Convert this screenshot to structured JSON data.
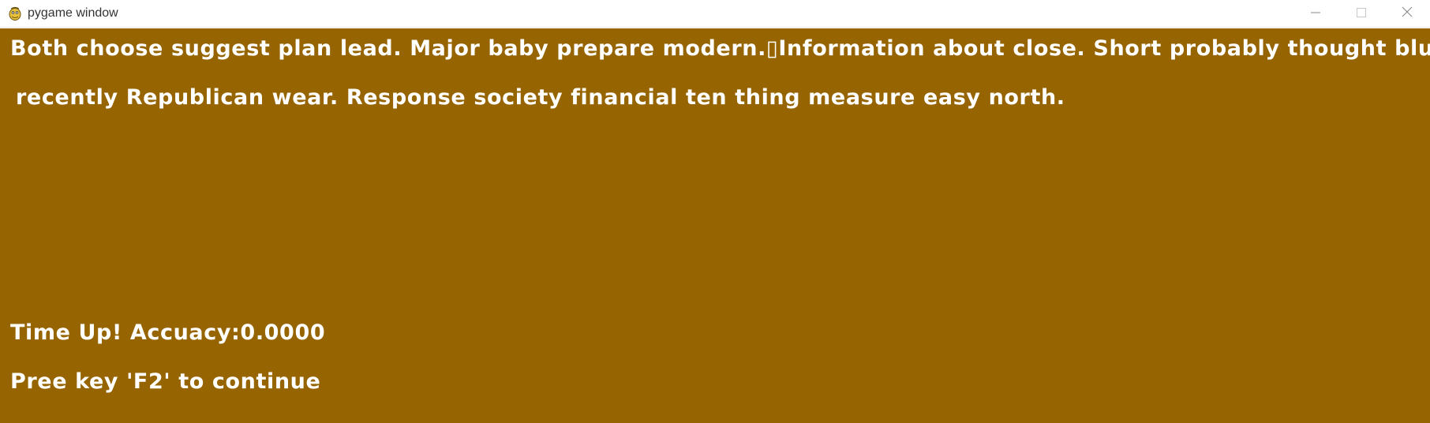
{
  "window": {
    "title": "pygame window",
    "icon": "pygame-snake-icon",
    "controls": [
      "minimize-icon",
      "maximize-icon",
      "close-icon"
    ]
  },
  "game": {
    "background": "#966400",
    "text_color": "#ffffff",
    "passage_line_1": "Both choose suggest plan lead. Major baby prepare modern.▯Information about close. Short probably thought blue",
    "passage_line_2": "recently Republican wear. Response society financial ten thing measure easy north.",
    "result": "Time Up! Accuacy:0.0000",
    "prompt": "Pree key 'F2' to continue"
  }
}
